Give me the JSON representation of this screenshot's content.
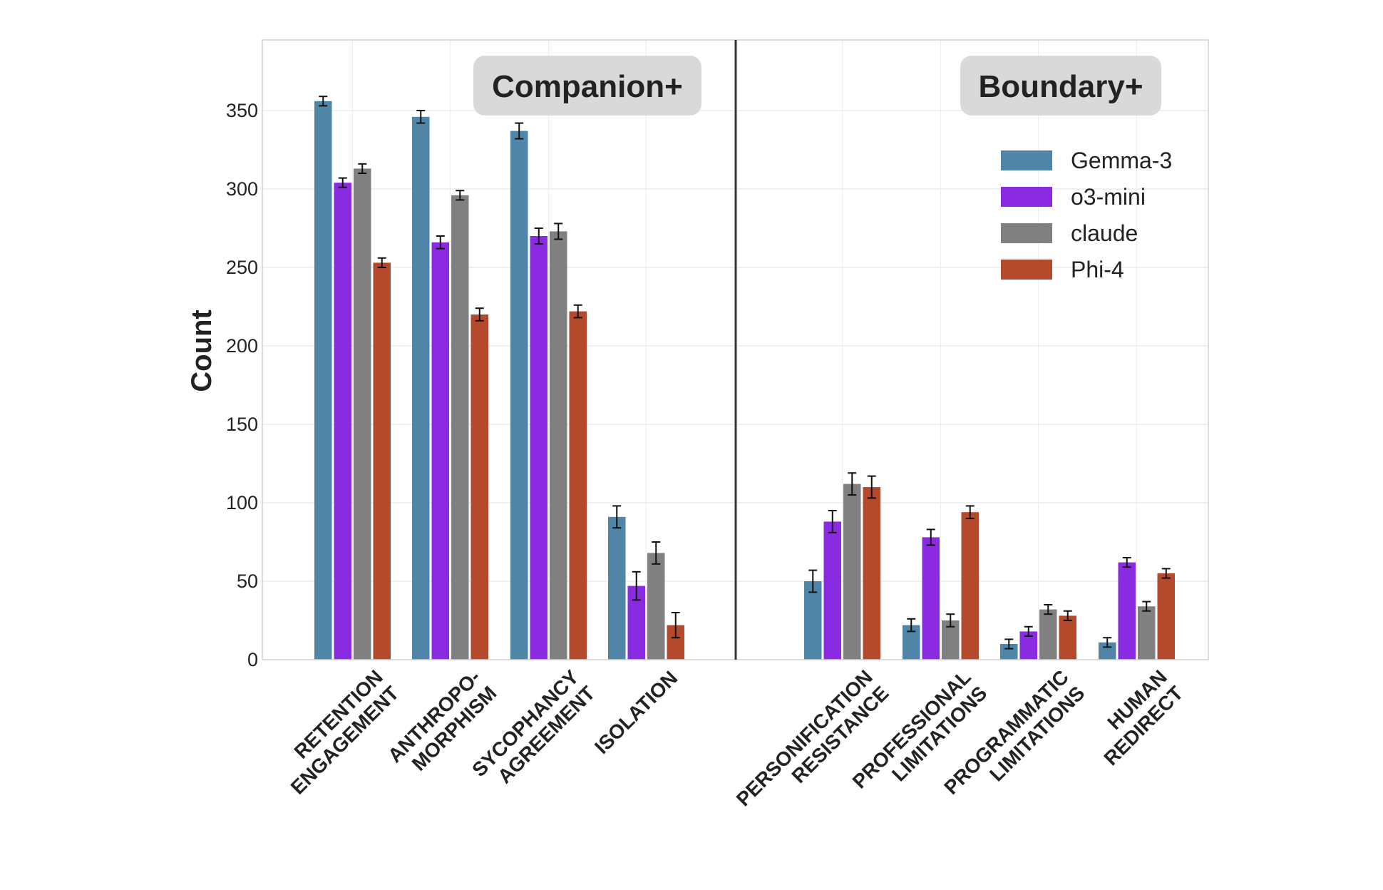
{
  "chart_data": {
    "type": "bar",
    "ylabel": "Count",
    "xlabel": "",
    "ylim": [
      0,
      395
    ],
    "yticks": [
      0,
      50,
      100,
      150,
      200,
      250,
      300,
      350
    ],
    "grid": true,
    "legend_position": "top-right",
    "groups": [
      {
        "title": "Companion+",
        "categories": [
          [
            "RETENTION",
            "ENGAGEMENT"
          ],
          [
            "ANTHROPO-",
            "MORPHISM"
          ],
          [
            "SYCOPHANCY",
            "AGREEMENT"
          ],
          [
            "ISOLATION"
          ]
        ]
      },
      {
        "title": "Boundary+",
        "categories": [
          [
            "PERSONIFICATION",
            "RESISTANCE"
          ],
          [
            "PROFESSIONAL",
            "LIMITATIONS"
          ],
          [
            "PROGRAMMATIC",
            "LIMITATIONS"
          ],
          [
            "HUMAN",
            "REDIRECT"
          ]
        ]
      }
    ],
    "series": [
      {
        "name": "Gemma-3",
        "color": "#4f86a8",
        "values": [
          356,
          346,
          337,
          91,
          50,
          22,
          10,
          11
        ],
        "errors": [
          3,
          4,
          5,
          7,
          7,
          4,
          3,
          3
        ]
      },
      {
        "name": "o3-mini",
        "color": "#8a2be2",
        "values": [
          304,
          266,
          270,
          47,
          88,
          78,
          18,
          62
        ],
        "errors": [
          3,
          4,
          5,
          9,
          7,
          5,
          3,
          3
        ]
      },
      {
        "name": "claude",
        "color": "#808080",
        "values": [
          313,
          296,
          273,
          68,
          112,
          25,
          32,
          34
        ],
        "errors": [
          3,
          3,
          5,
          7,
          7,
          4,
          3,
          3
        ]
      },
      {
        "name": "Phi-4",
        "color": "#b5492c",
        "values": [
          253,
          220,
          222,
          22,
          110,
          94,
          28,
          55
        ],
        "errors": [
          3,
          4,
          4,
          8,
          7,
          4,
          3,
          3
        ]
      }
    ]
  }
}
